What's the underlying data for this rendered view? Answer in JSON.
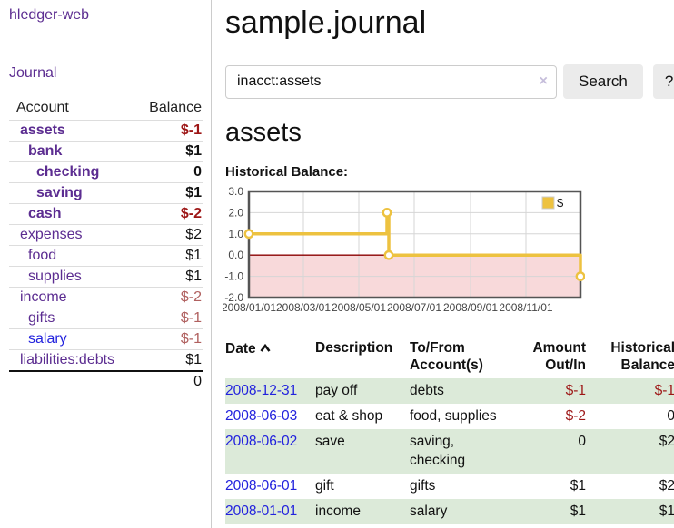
{
  "brand": "hledger-web",
  "nav": {
    "journal": "Journal"
  },
  "sidebar": {
    "header": {
      "account": "Account",
      "balance": "Balance"
    },
    "accounts": [
      {
        "name": "assets",
        "balance": "$-1"
      },
      {
        "name": "bank",
        "balance": "$1"
      },
      {
        "name": "checking",
        "balance": "0"
      },
      {
        "name": "saving",
        "balance": "$1"
      },
      {
        "name": "cash",
        "balance": "$-2"
      },
      {
        "name": "expenses",
        "balance": "$2"
      },
      {
        "name": "food",
        "balance": "$1"
      },
      {
        "name": "supplies",
        "balance": "$1"
      },
      {
        "name": "income",
        "balance": "$-2"
      },
      {
        "name": "gifts",
        "balance": "$-1"
      },
      {
        "name": "salary",
        "balance": "$-1"
      },
      {
        "name": "liabilities:debts",
        "balance": "$1"
      }
    ],
    "total": "0"
  },
  "main": {
    "title": "sample.journal",
    "search": {
      "value": "inacct:assets",
      "clear_icon": "×",
      "search_button": "Search",
      "help_button": "?"
    },
    "heading": "assets",
    "chart_title": "Historical Balance:"
  },
  "chart_data": {
    "type": "line",
    "title": "Historical Balance",
    "x_start": "2008-01-01",
    "x_end": "2008-12-31",
    "x_tick_labels": [
      "2008/01/01",
      "2008/03/01",
      "2008/05/01",
      "2008/07/01",
      "2008/09/01",
      "2008/11/01"
    ],
    "y_ticks": [
      3.0,
      2.0,
      1.0,
      0.0,
      -1.0,
      -2.0
    ],
    "ylim": [
      -2,
      3
    ],
    "grid": true,
    "legend": {
      "label": "$",
      "position": "top-right"
    },
    "series": [
      {
        "name": "$",
        "color": "#EDC240",
        "line_type": "step",
        "points": [
          {
            "x": "2008-01-01",
            "y": 1
          },
          {
            "x": "2008-06-01",
            "y": 2
          },
          {
            "x": "2008-06-03",
            "y": 0
          },
          {
            "x": "2008-12-31",
            "y": -1
          }
        ]
      }
    ],
    "negative_region_color": "#f8d9da",
    "zero_line_color": "#8b0000",
    "grid_color": "#d6d6d6",
    "plot_border_color": "#545454"
  },
  "register": {
    "headers": {
      "date": "Date",
      "description": "Description",
      "accounts": "To/From Account(s)",
      "amount": "Amount Out/In",
      "balance": "Historical Balance"
    },
    "rows": [
      {
        "date": "2008-12-31",
        "description": "pay off",
        "accounts": "debts",
        "amount": "$-1",
        "balance": "$-1"
      },
      {
        "date": "2008-06-03",
        "description": "eat & shop",
        "accounts": "food, supplies",
        "amount": "$-2",
        "balance": "0"
      },
      {
        "date": "2008-06-02",
        "description": "save",
        "accounts": "saving, checking",
        "amount": "0",
        "balance": "$2"
      },
      {
        "date": "2008-06-01",
        "description": "gift",
        "accounts": "gifts",
        "amount": "$1",
        "balance": "$2"
      },
      {
        "date": "2008-01-01",
        "description": "income",
        "accounts": "salary",
        "amount": "$1",
        "balance": "$1"
      }
    ]
  },
  "colors": {
    "link_purple": "#5c2d91",
    "link_blue": "#2222dd",
    "negative_strong": "#9d1616",
    "negative_muted": "#b0605f",
    "row_green": "#dcead9",
    "accent_yellow": "#EDC240"
  }
}
